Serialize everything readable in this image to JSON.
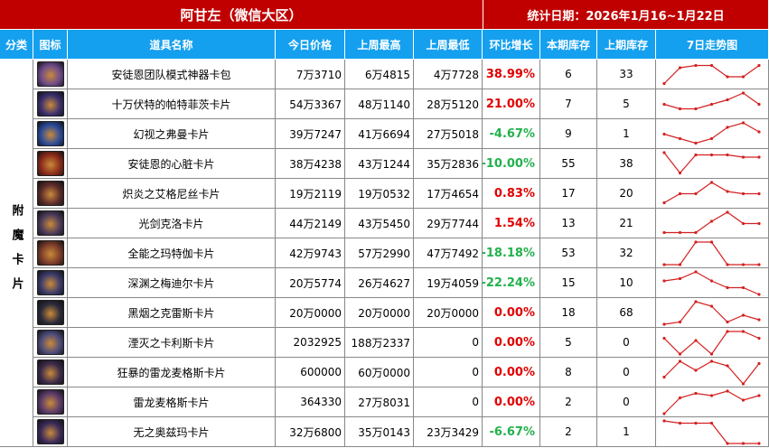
{
  "header": {
    "title": "阿甘左（微信大区）",
    "date": "统计日期：2026年1月16~1月22日"
  },
  "table": {
    "columns": [
      "分类",
      "图标",
      "道具名称",
      "今日价格",
      "上周最高",
      "上周最低",
      "环比增长",
      "本期库存",
      "上期库存",
      "7日走势图"
    ],
    "category": "附魔卡片",
    "trend_color": "#d42020",
    "rows": [
      {
        "name": "安徒恩团队模式神器卡包",
        "today": "7万3710",
        "high": "6万4815",
        "low": "4万7728",
        "growth": "38.99%",
        "growth_color": "#e00000",
        "stock": 6,
        "prev_stock": 33,
        "trend": [
          1,
          8,
          9,
          9,
          4,
          4,
          9
        ]
      },
      {
        "name": "十万伏特的帕特菲茨卡片",
        "today": "54万3367",
        "high": "48万1140",
        "low": "28万5120",
        "growth": "21.00%",
        "growth_color": "#e00000",
        "stock": 7,
        "prev_stock": 5,
        "trend": [
          5,
          3,
          3,
          5,
          7,
          10,
          5
        ]
      },
      {
        "name": "幻视之弗曼卡片",
        "today": "39万7247",
        "high": "41万6694",
        "low": "27万5018",
        "growth": "-4.67%",
        "growth_color": "#22b14c",
        "stock": 9,
        "prev_stock": 1,
        "trend": [
          5,
          3,
          1,
          3,
          8,
          10,
          6
        ]
      },
      {
        "name": "安徒恩的心脏卡片",
        "today": "38万4238",
        "high": "43万1244",
        "low": "35万2836",
        "growth": "-10.00%",
        "growth_color": "#22b14c",
        "stock": 55,
        "prev_stock": 38,
        "trend": [
          10,
          1,
          9,
          9,
          9,
          8,
          8
        ]
      },
      {
        "name": "炽炎之艾格尼丝卡片",
        "today": "19万2119",
        "high": "19万0532",
        "low": "17万4654",
        "growth": "0.83%",
        "growth_color": "#e00000",
        "stock": 17,
        "prev_stock": 20,
        "trend": [
          1,
          5,
          5,
          10,
          6,
          5,
          5
        ]
      },
      {
        "name": "光剑克洛卡片",
        "today": "44万2149",
        "high": "43万5450",
        "low": "29万7744",
        "growth": "1.54%",
        "growth_color": "#e00000",
        "stock": 13,
        "prev_stock": 21,
        "trend": [
          1,
          1,
          1,
          6,
          10,
          5,
          5
        ]
      },
      {
        "name": "全能之玛特伽卡片",
        "today": "42万9743",
        "high": "57万2990",
        "low": "47万7492",
        "growth": "-18.18%",
        "growth_color": "#22b14c",
        "stock": 53,
        "prev_stock": 32,
        "trend": [
          0,
          0,
          10,
          10,
          0,
          0,
          0
        ]
      },
      {
        "name": "深渊之梅迪尔卡片",
        "today": "20万5774",
        "high": "26万4627",
        "low": "19万4059",
        "growth": "-22.24%",
        "growth_color": "#22b14c",
        "stock": 15,
        "prev_stock": 10,
        "trend": [
          6,
          7,
          10,
          6,
          3,
          3,
          0
        ]
      },
      {
        "name": "黑烟之克雷斯卡片",
        "today": "20万0000",
        "high": "20万0000",
        "low": "20万0000",
        "growth": "0.00%",
        "growth_color": "#e00000",
        "stock": 18,
        "prev_stock": 68,
        "trend": [
          0,
          1,
          10,
          8,
          1,
          4,
          2
        ]
      },
      {
        "name": "湮灭之卡利斯卡片",
        "today": "2032925",
        "high": "188万2337",
        "low": "0",
        "growth": "0.00%",
        "growth_color": "#e00000",
        "stock": 5,
        "prev_stock": 0,
        "trend": [
          7,
          0,
          6,
          0,
          10,
          10,
          7
        ]
      },
      {
        "name": "狂暴的雷龙麦格斯卡片",
        "today": "600000",
        "high": "60万0000",
        "low": "0",
        "growth": "0.00%",
        "growth_color": "#e00000",
        "stock": 8,
        "prev_stock": 0,
        "trend": [
          3,
          10,
          6,
          10,
          8,
          0,
          9
        ]
      },
      {
        "name": "雷龙麦格斯卡片",
        "today": "364330",
        "high": "27万8031",
        "low": "0",
        "growth": "0.00%",
        "growth_color": "#e00000",
        "stock": 2,
        "prev_stock": 0,
        "trend": [
          0,
          7,
          9,
          8,
          10,
          6,
          8
        ]
      },
      {
        "name": "无之奥兹玛卡片",
        "today": "32万6800",
        "high": "35万0143",
        "low": "23万3429",
        "growth": "-6.67%",
        "growth_color": "#22b14c",
        "stock": 2,
        "prev_stock": 1,
        "trend": [
          10,
          9,
          9,
          9,
          0,
          0,
          0
        ]
      }
    ]
  }
}
